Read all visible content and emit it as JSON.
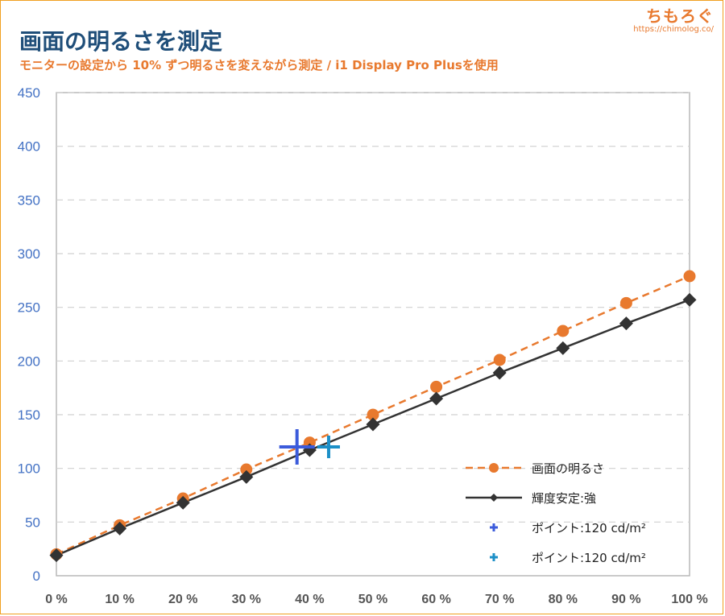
{
  "brand": {
    "name": "ちもろぐ",
    "url": "https://chimolog.co/"
  },
  "colors": {
    "orange": "#e8792e",
    "dark": "#333333",
    "point1": "#3b5bdb",
    "point2": "#1c8fc7",
    "grid": "#d0d0d0",
    "ytick": "#4472c4"
  },
  "chart_data": {
    "type": "line",
    "title": "画面の明るさを測定",
    "subtitle": "モニターの設定から 10% ずつ明るさを変えながら測定 / i1 Display Pro Plusを使用",
    "x": [
      "0 %",
      "10 %",
      "20 %",
      "30 %",
      "40 %",
      "50 %",
      "60 %",
      "70 %",
      "80 %",
      "90 %",
      "100 %"
    ],
    "x_values": [
      0,
      10,
      20,
      30,
      40,
      50,
      60,
      70,
      80,
      90,
      100
    ],
    "ylim": [
      0,
      450
    ],
    "yticks": [
      "0",
      "50",
      "100",
      "150",
      "200",
      "250",
      "300",
      "350",
      "400",
      "450"
    ],
    "ytick_values": [
      0,
      50,
      100,
      150,
      200,
      250,
      300,
      350,
      400,
      450
    ],
    "grid": true,
    "legend_position": "bottom-right",
    "series": [
      {
        "name": "画面の明るさ",
        "color": "#e8792e",
        "style": "dashed",
        "marker": "circle",
        "values": [
          20,
          47,
          72,
          99,
          124,
          150,
          176,
          201,
          228,
          254,
          279
        ]
      },
      {
        "name": "輝度安定:強",
        "color": "#333333",
        "style": "solid",
        "marker": "diamond",
        "values": [
          19,
          44,
          68,
          92,
          117,
          141,
          165,
          189,
          212,
          235,
          257
        ]
      }
    ],
    "points": [
      {
        "name": "ポイント:120 cd/m²",
        "x": 38,
        "y": 120,
        "color": "#3b5bdb"
      },
      {
        "name": "ポイント:120 cd/m²",
        "x": 43,
        "y": 120,
        "color": "#1c8fc7"
      }
    ]
  }
}
